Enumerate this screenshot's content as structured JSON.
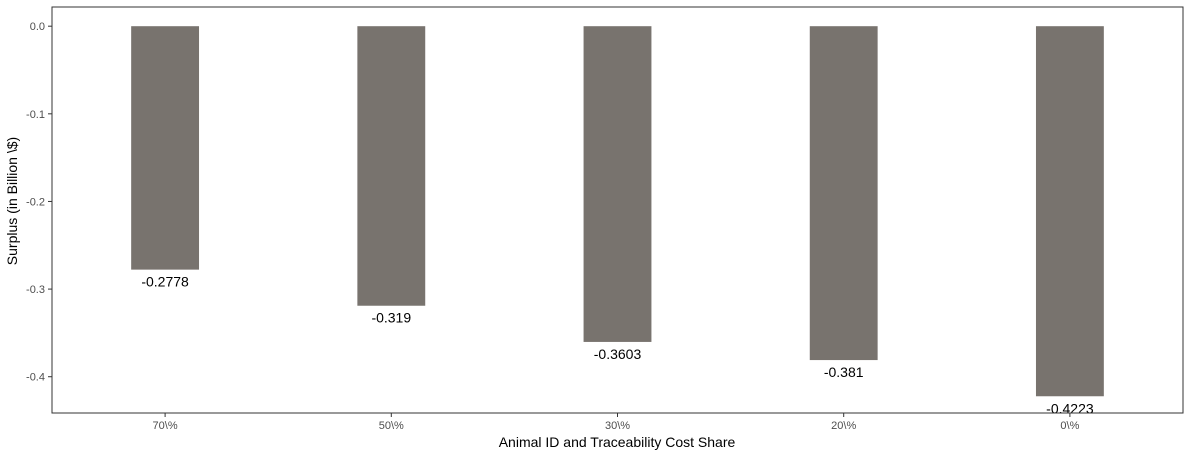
{
  "chart_data": {
    "type": "bar",
    "categories": [
      "70\\%",
      "50\\%",
      "30\\%",
      "20\\%",
      "0\\%"
    ],
    "values": [
      -0.2778,
      -0.319,
      -0.3603,
      -0.381,
      -0.4223
    ],
    "value_labels": [
      "-0.2778",
      "-0.319",
      "-0.3603",
      "-0.381",
      "-0.4223"
    ],
    "xlabel": "Animal ID and Traceability Cost Share",
    "ylabel": "Surplus (in Billion \\$)",
    "ylim": [
      -0.4414,
      0.0219
    ],
    "yticks": [
      0.0,
      -0.1,
      -0.2,
      -0.3,
      -0.4
    ],
    "ytick_labels": [
      "0.0",
      "-0.1",
      "-0.2",
      "-0.3",
      "-0.4"
    ],
    "grid": false,
    "bar_color": "#78736e"
  }
}
